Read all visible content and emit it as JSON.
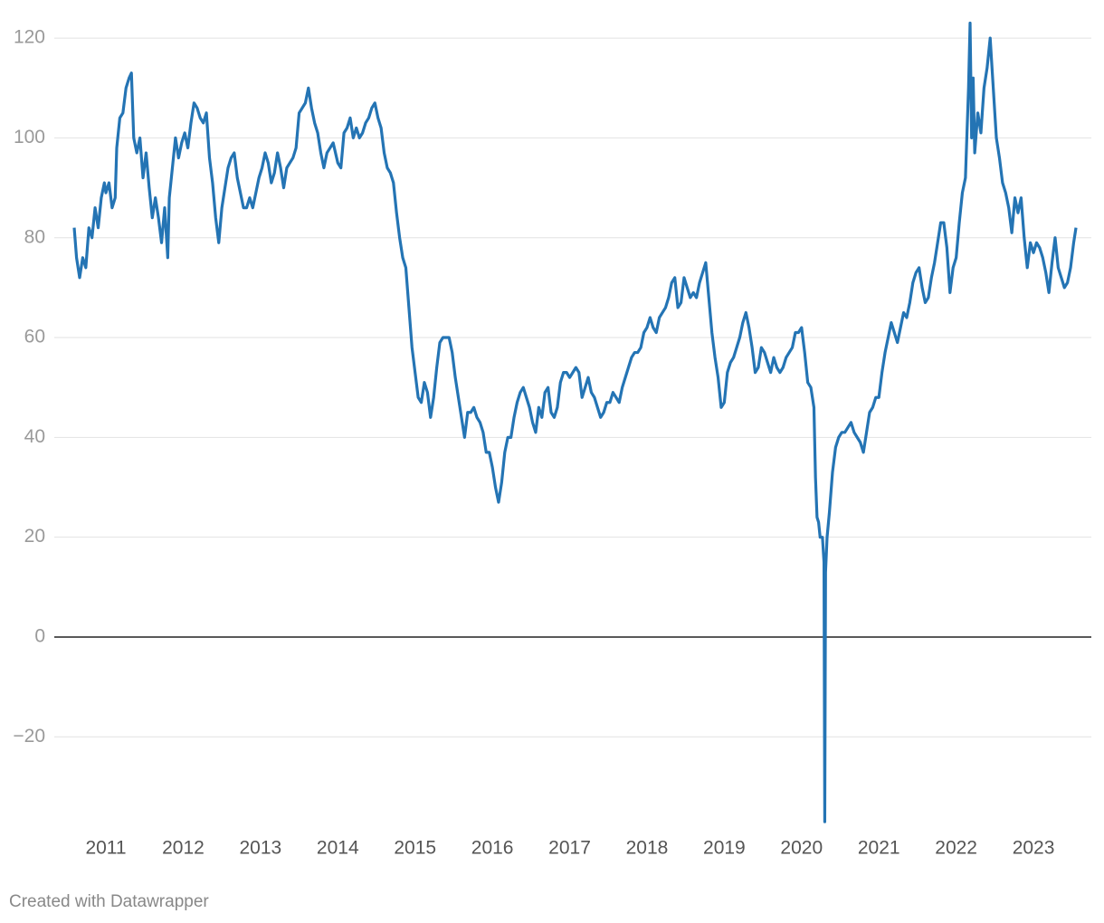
{
  "chart_data": {
    "type": "line",
    "color": "#2474b4",
    "credit": "Created with Datawrapper",
    "xlim": [
      2010.55,
      2023.6
    ],
    "xticks": [
      2011,
      2012,
      2013,
      2014,
      2015,
      2016,
      2017,
      2018,
      2019,
      2020,
      2021,
      2022,
      2023
    ],
    "ylim": [
      -38,
      124
    ],
    "yticks": [
      {
        "value": -20,
        "label": "−20"
      },
      0,
      20,
      40,
      60,
      80,
      100,
      120
    ],
    "grid": true,
    "x": [
      2010.59,
      2010.62,
      2010.66,
      2010.7,
      2010.74,
      2010.78,
      2010.82,
      2010.86,
      2010.9,
      2010.94,
      2010.98,
      2011.0,
      2011.04,
      2011.08,
      2011.12,
      2011.14,
      2011.18,
      2011.22,
      2011.26,
      2011.3,
      2011.33,
      2011.36,
      2011.4,
      2011.44,
      2011.48,
      2011.52,
      2011.56,
      2011.6,
      2011.64,
      2011.68,
      2011.72,
      2011.76,
      2011.8,
      2011.82,
      2011.86,
      2011.9,
      2011.94,
      2011.98,
      2012.02,
      2012.06,
      2012.1,
      2012.14,
      2012.18,
      2012.22,
      2012.26,
      2012.3,
      2012.34,
      2012.38,
      2012.42,
      2012.46,
      2012.5,
      2012.54,
      2012.58,
      2012.62,
      2012.66,
      2012.7,
      2012.74,
      2012.78,
      2012.82,
      2012.86,
      2012.9,
      2012.94,
      2012.98,
      2013.02,
      2013.06,
      2013.1,
      2013.14,
      2013.18,
      2013.22,
      2013.26,
      2013.3,
      2013.34,
      2013.38,
      2013.42,
      2013.46,
      2013.5,
      2013.54,
      2013.58,
      2013.62,
      2013.66,
      2013.7,
      2013.74,
      2013.78,
      2013.82,
      2013.86,
      2013.9,
      2013.94,
      2014.0,
      2014.04,
      2014.08,
      2014.12,
      2014.16,
      2014.2,
      2014.24,
      2014.28,
      2014.32,
      2014.36,
      2014.4,
      2014.44,
      2014.48,
      2014.52,
      2014.56,
      2014.6,
      2014.64,
      2014.68,
      2014.72,
      2014.76,
      2014.8,
      2014.84,
      2014.88,
      2014.92,
      2014.96,
      2015.0,
      2015.04,
      2015.08,
      2015.12,
      2015.16,
      2015.2,
      2015.24,
      2015.28,
      2015.32,
      2015.36,
      2015.4,
      2015.44,
      2015.48,
      2015.52,
      2015.56,
      2015.6,
      2015.64,
      2015.68,
      2015.72,
      2015.76,
      2015.8,
      2015.84,
      2015.88,
      2015.92,
      2015.96,
      2016.0,
      2016.04,
      2016.08,
      2016.12,
      2016.16,
      2016.2,
      2016.24,
      2016.28,
      2016.32,
      2016.36,
      2016.4,
      2016.44,
      2016.48,
      2016.52,
      2016.56,
      2016.6,
      2016.64,
      2016.68,
      2016.72,
      2016.76,
      2016.8,
      2016.84,
      2016.88,
      2016.92,
      2016.96,
      2017.0,
      2017.04,
      2017.08,
      2017.12,
      2017.16,
      2017.2,
      2017.24,
      2017.28,
      2017.32,
      2017.36,
      2017.4,
      2017.44,
      2017.48,
      2017.52,
      2017.56,
      2017.6,
      2017.64,
      2017.68,
      2017.72,
      2017.76,
      2017.8,
      2017.84,
      2017.88,
      2017.92,
      2017.96,
      2018.0,
      2018.04,
      2018.08,
      2018.12,
      2018.16,
      2018.2,
      2018.24,
      2018.28,
      2018.32,
      2018.36,
      2018.4,
      2018.44,
      2018.48,
      2018.52,
      2018.56,
      2018.6,
      2018.64,
      2018.68,
      2018.72,
      2018.76,
      2018.8,
      2018.84,
      2018.88,
      2018.92,
      2018.96,
      2019.0,
      2019.04,
      2019.08,
      2019.12,
      2019.16,
      2019.2,
      2019.24,
      2019.28,
      2019.32,
      2019.36,
      2019.4,
      2019.44,
      2019.48,
      2019.52,
      2019.56,
      2019.6,
      2019.64,
      2019.68,
      2019.72,
      2019.76,
      2019.8,
      2019.84,
      2019.88,
      2019.92,
      2019.96,
      2020.0,
      2020.04,
      2020.08,
      2020.12,
      2020.16,
      2020.18,
      2020.2,
      2020.22,
      2020.24,
      2020.27,
      2020.29,
      2020.3,
      2020.31,
      2020.33,
      2020.36,
      2020.4,
      2020.44,
      2020.48,
      2020.52,
      2020.56,
      2020.6,
      2020.64,
      2020.68,
      2020.72,
      2020.76,
      2020.8,
      2020.84,
      2020.88,
      2020.92,
      2020.96,
      2021.0,
      2021.04,
      2021.08,
      2021.12,
      2021.16,
      2021.2,
      2021.24,
      2021.28,
      2021.32,
      2021.36,
      2021.4,
      2021.44,
      2021.48,
      2021.52,
      2021.56,
      2021.6,
      2021.64,
      2021.68,
      2021.72,
      2021.76,
      2021.8,
      2021.84,
      2021.88,
      2021.92,
      2021.96,
      2022.0,
      2022.04,
      2022.08,
      2022.12,
      2022.16,
      2022.18,
      2022.2,
      2022.22,
      2022.24,
      2022.28,
      2022.32,
      2022.36,
      2022.4,
      2022.44,
      2022.48,
      2022.52,
      2022.56,
      2022.6,
      2022.64,
      2022.68,
      2022.72,
      2022.76,
      2022.8,
      2022.84,
      2022.88,
      2022.92,
      2022.96,
      2023.0,
      2023.04,
      2023.08,
      2023.12,
      2023.16,
      2023.2,
      2023.24,
      2023.28,
      2023.32,
      2023.36,
      2023.4,
      2023.44,
      2023.48,
      2023.52,
      2023.55
    ],
    "values": [
      82,
      76,
      72,
      76,
      74,
      82,
      80,
      86,
      82,
      88,
      91,
      89,
      91,
      86,
      88,
      98,
      104,
      105,
      110,
      112,
      113,
      100,
      97,
      100,
      92,
      97,
      90,
      84,
      88,
      84,
      79,
      86,
      76,
      88,
      94,
      100,
      96,
      99,
      101,
      98,
      103,
      107,
      106,
      104,
      103,
      105,
      96,
      91,
      84,
      79,
      86,
      90,
      94,
      96,
      97,
      92,
      89,
      86,
      86,
      88,
      86,
      89,
      92,
      94,
      97,
      95,
      91,
      93,
      97,
      94,
      90,
      94,
      95,
      96,
      98,
      105,
      106,
      107,
      110,
      106,
      103,
      101,
      97,
      94,
      97,
      98,
      99,
      95,
      94,
      101,
      102,
      104,
      100,
      102,
      100,
      101,
      103,
      104,
      106,
      107,
      104,
      102,
      97,
      94,
      93,
      91,
      85,
      80,
      76,
      74,
      66,
      58,
      53,
      48,
      47,
      51,
      49,
      44,
      48,
      54,
      59,
      60,
      60,
      60,
      57,
      52,
      48,
      44,
      40,
      45,
      45,
      46,
      44,
      43,
      41,
      37,
      37,
      34,
      30,
      27,
      31,
      37,
      40,
      40,
      44,
      47,
      49,
      50,
      48,
      46,
      43,
      41,
      46,
      44,
      49,
      50,
      45,
      44,
      46,
      51,
      53,
      53,
      52,
      53,
      54,
      53,
      48,
      50,
      52,
      49,
      48,
      46,
      44,
      45,
      47,
      47,
      49,
      48,
      47,
      50,
      52,
      54,
      56,
      57,
      57,
      58,
      61,
      62,
      64,
      62,
      61,
      64,
      65,
      66,
      68,
      71,
      72,
      66,
      67,
      72,
      70,
      68,
      69,
      68,
      71,
      73,
      75,
      68,
      61,
      56,
      52,
      46,
      47,
      53,
      55,
      56,
      58,
      60,
      63,
      65,
      62,
      58,
      53,
      54,
      58,
      57,
      55,
      53,
      56,
      54,
      53,
      54,
      56,
      57,
      58,
      61,
      61,
      62,
      57,
      51,
      50,
      46,
      32,
      24,
      23,
      20,
      20,
      15,
      -37,
      13,
      20,
      25,
      33,
      38,
      40,
      41,
      41,
      42,
      43,
      41,
      40,
      39,
      37,
      41,
      45,
      46,
      48,
      48,
      53,
      57,
      60,
      63,
      61,
      59,
      62,
      65,
      64,
      67,
      71,
      73,
      74,
      70,
      67,
      68,
      72,
      75,
      79,
      83,
      83,
      78,
      69,
      74,
      76,
      83,
      89,
      92,
      110,
      123,
      100,
      112,
      97,
      105,
      101,
      110,
      114,
      120,
      110,
      100,
      96,
      91,
      89,
      86,
      81,
      88,
      85,
      88,
      80,
      74,
      79,
      77,
      79,
      78,
      76,
      73,
      69,
      75,
      80,
      74,
      72,
      70,
      71,
      74,
      79,
      82
    ]
  }
}
